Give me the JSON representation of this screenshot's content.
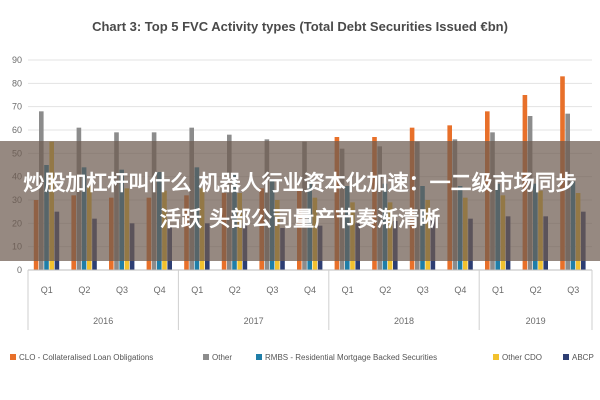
{
  "overlay": {
    "headline": "炒股加杠杆叫什么 机器人行业资本化加速：一二级市场同步活跃 头部公司量产节奏渐清晰"
  },
  "chart_data": {
    "type": "bar",
    "title": "Chart 3: Top 5 FVC Activity types (Total Debt Securities Issued €bn)",
    "categories": [
      "Q1",
      "Q2",
      "Q3",
      "Q4",
      "Q1",
      "Q2",
      "Q3",
      "Q4",
      "Q1",
      "Q2",
      "Q3",
      "Q4",
      "Q1",
      "Q2",
      "Q3"
    ],
    "groups": [
      {
        "label": "2016",
        "count": 4
      },
      {
        "label": "2017",
        "count": 4
      },
      {
        "label": "2018",
        "count": 4
      },
      {
        "label": "2019",
        "count": 3
      }
    ],
    "ylim": [
      0,
      90
    ],
    "yticks": [
      0,
      10,
      20,
      30,
      40,
      50,
      60,
      70,
      80,
      90
    ],
    "grid": true,
    "legend_position": "bottom",
    "series": [
      {
        "name": "CLO - Collateralised Loan Obligations",
        "color": "#e8702a",
        "values": [
          30,
          32,
          31,
          31,
          32,
          33,
          35,
          34,
          57,
          57,
          61,
          62,
          68,
          75,
          83
        ]
      },
      {
        "name": "Other",
        "color": "#8c8c8c",
        "values": [
          68,
          61,
          59,
          59,
          61,
          58,
          56,
          55,
          52,
          53,
          55,
          56,
          59,
          66,
          67
        ]
      },
      {
        "name": "RMBS - Residential Mortgage Backed Securities",
        "color": "#1f7ea8",
        "values": [
          45,
          44,
          43,
          42,
          44,
          41,
          39,
          38,
          36,
          37,
          36,
          36,
          37,
          37,
          38
        ]
      },
      {
        "name": "Other CDO",
        "color": "#f2c12e",
        "values": [
          55,
          36,
          35,
          34,
          35,
          33,
          30,
          31,
          29,
          29,
          30,
          31,
          32,
          34,
          33
        ]
      },
      {
        "name": "ABCP",
        "color": "#2d3e73",
        "values": [
          25,
          22,
          20,
          19,
          20,
          20,
          18,
          19,
          20,
          21,
          22,
          22,
          23,
          23,
          25
        ]
      }
    ]
  }
}
